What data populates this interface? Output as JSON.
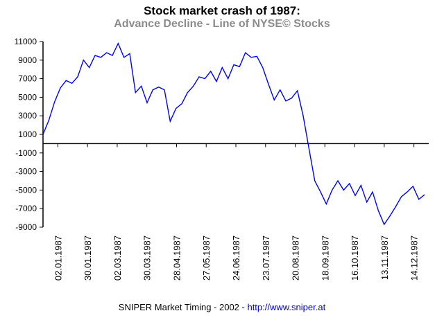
{
  "chart_data": {
    "type": "line",
    "title": "Stock market crash of 1987:",
    "subtitle": "Advance Decline - Line of NYSE© Stocks",
    "xlabel": "",
    "ylabel": "",
    "ylim": [
      -9000,
      11000
    ],
    "yticks": [
      11000,
      9000,
      7000,
      5000,
      3000,
      1000,
      -1000,
      -3000,
      -5000,
      -7000,
      -9000
    ],
    "xtick_labels": [
      "02.01.1987",
      "30.01.1987",
      "02.03.1987",
      "30.03.1987",
      "28.04.1987",
      "27.05.1987",
      "24.06.1987",
      "23.07.1987",
      "20.08.1987",
      "18.09.1987",
      "16.10.1987",
      "13.11.1987",
      "14.12.1987"
    ],
    "line_color": "#0000ff",
    "grid": false,
    "series": [
      {
        "values": [
          1000,
          2500,
          4500,
          6000,
          6800,
          6500,
          7200,
          9000,
          8200,
          9500,
          9300,
          9800,
          9500,
          10800,
          9300,
          9700,
          5500,
          6200,
          4400,
          5800,
          6100,
          5800,
          2400,
          3800,
          4300,
          5500,
          6200,
          7200,
          7000,
          7800,
          6700,
          8200,
          7000,
          8500,
          8300,
          9800,
          9300,
          9400,
          8200,
          6400,
          4700,
          5800,
          4600,
          4900,
          5700,
          3000,
          -500,
          -4000,
          -5200,
          -6500,
          -5000,
          -4000,
          -5000,
          -4300,
          -5600,
          -4500,
          -6300,
          -5200,
          -7200,
          -8700,
          -7800,
          -6800,
          -5700,
          -5200,
          -4600,
          -6000,
          -5500
        ]
      }
    ]
  },
  "footer": {
    "text": "SNIPER Market Timing - 2002 - ",
    "link": "http://www.sniper.at"
  }
}
